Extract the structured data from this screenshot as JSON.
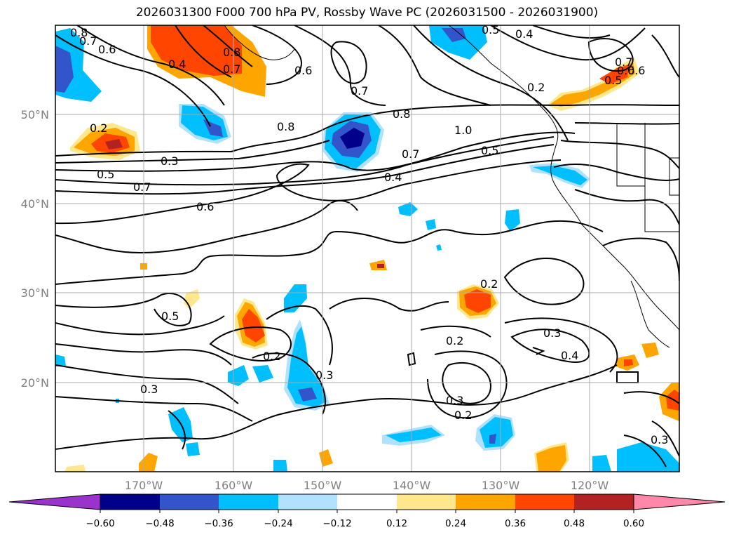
{
  "title": "2026031300 F000 700 hPa PV, Rossby Wave PC (2026031500 - 2026031900)",
  "lat_labels": [
    "50°N",
    "40°N",
    "30°N",
    "20°N"
  ],
  "lon_labels": [
    "170°W",
    "160°W",
    "150°W",
    "140°W",
    "130°W",
    "120°W"
  ],
  "colorbar": {
    "ticks": [
      "−0.60",
      "−0.48",
      "−0.36",
      "−0.24",
      "−0.12",
      "0.12",
      "0.24",
      "0.36",
      "0.48",
      "0.60"
    ],
    "colors": [
      "#9933cc",
      "#00008b",
      "#3355cc",
      "#00bfff",
      "#b0e2ff",
      "#ffffff",
      "#ffe88c",
      "#ffa500",
      "#ff4500",
      "#b22222",
      "#ff88aa"
    ]
  },
  "contour_labels": [
    "0.8",
    "0.7",
    "0.6",
    "0.4",
    "0.6",
    "0.5",
    "0.4",
    "0.8",
    "0.7",
    "0.6",
    "0.7",
    "0.2",
    "0.3",
    "0.5",
    "0.7",
    "0.6",
    "0.8",
    "0.8",
    "1.0",
    "0.7",
    "0.5",
    "0.4",
    "0.2",
    "0.6",
    "0.5",
    "0.7",
    "0.5",
    "0.2",
    "0.3",
    "0.2",
    "0.3",
    "0.2",
    "0.3",
    "0.4",
    "0.3",
    "0.2",
    "0.3"
  ]
}
